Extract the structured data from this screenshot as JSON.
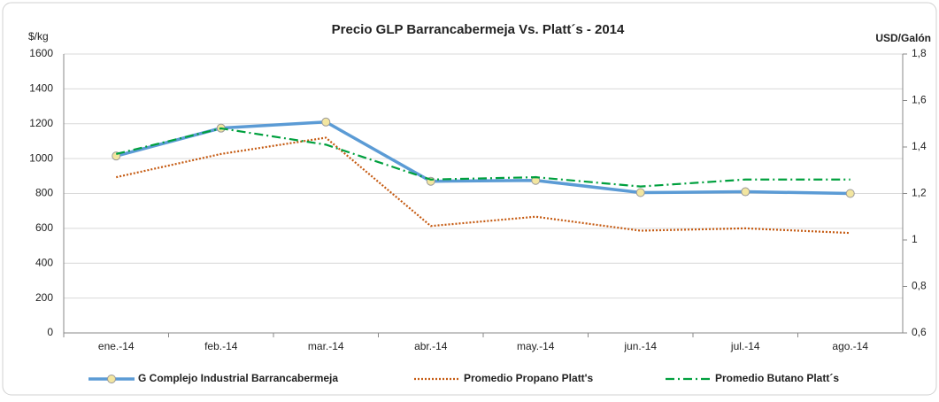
{
  "chart_data": {
    "type": "line",
    "title": "Precio GLP Barrancabermeja Vs. Platt´s - 2014",
    "y_label": "$/kg",
    "y2_label": "USD/Galón",
    "categories": [
      "ene.-14",
      "feb.-14",
      "mar.-14",
      "abr.-14",
      "may.-14",
      "jun.-14",
      "jul.-14",
      "ago.-14"
    ],
    "series": [
      {
        "name": "G Complejo Industrial Barrancabermeja",
        "color": "#5b9bd5",
        "dash": "solid",
        "marker": "circle",
        "values": [
          1015,
          1175,
          1210,
          870,
          875,
          805,
          810,
          800
        ]
      },
      {
        "name": "Promedio Propano Platt's",
        "color": "#c55a11",
        "dash": "dot",
        "axis": "y2",
        "values": [
          1.27,
          1.37,
          1.44,
          1.06,
          1.1,
          1.04,
          1.05,
          1.03
        ]
      },
      {
        "name": "Promedio Butano Platt´s",
        "color": "#00a03e",
        "dash": "dashdot",
        "axis": "y2",
        "values": [
          1.37,
          1.48,
          1.41,
          1.26,
          1.27,
          1.23,
          1.26,
          1.26
        ]
      }
    ],
    "ylim": [
      0,
      1600
    ],
    "yticks": [
      0,
      200,
      400,
      600,
      800,
      1000,
      1200,
      1400,
      1600
    ],
    "y2lim": [
      0.6,
      1.8
    ],
    "y2ticks": [
      {
        "value": 0.6,
        "label": "0,6"
      },
      {
        "value": 0.8,
        "label": "0,8"
      },
      {
        "value": 1,
        "label": "1"
      },
      {
        "value": 1.2,
        "label": "1,2"
      },
      {
        "value": 1.4,
        "label": "1,4"
      },
      {
        "value": 1.6,
        "label": "1,6"
      },
      {
        "value": 1.8,
        "label": "1,8"
      }
    ],
    "grid": true,
    "legend": "bottom"
  }
}
